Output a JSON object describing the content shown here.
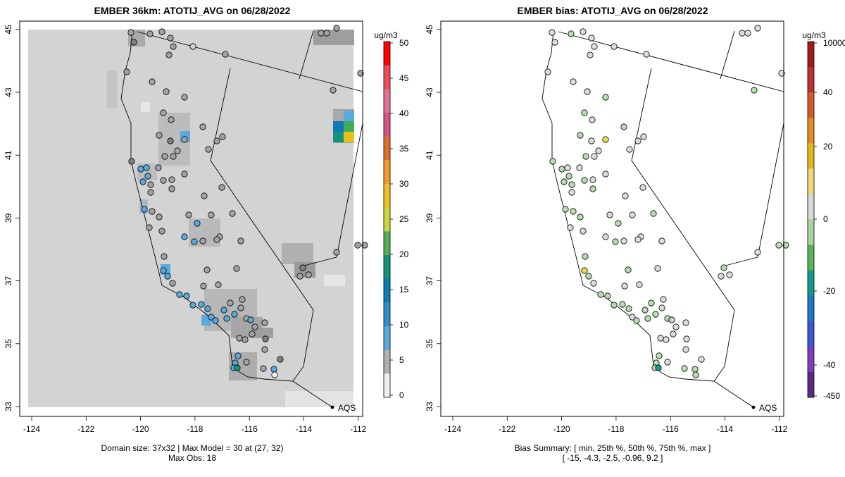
{
  "left": {
    "title": "EMBER 36km: ATOTIJ_AVG on 06/28/2022",
    "x_ticks": [
      "-124",
      "-122",
      "-120",
      "-118",
      "-116",
      "-114",
      "-112"
    ],
    "y_ticks": [
      "33",
      "35",
      "37",
      "39",
      "41",
      "43",
      "45"
    ],
    "aqs_label": "AQS",
    "colorbar": {
      "unit": "ug/m3",
      "ticks": [
        "50",
        "45",
        "40",
        "35",
        "30",
        "25",
        "20",
        "15",
        "10",
        "5",
        "0"
      ]
    },
    "footer": [
      "Domain size: 37x32 | Max Model = 30 at (27, 32)",
      "Max Obs: 18"
    ]
  },
  "right": {
    "title": "EMBER bias: ATOTIJ_AVG on 06/28/2022",
    "x_ticks": [
      "-124",
      "-122",
      "-120",
      "-118",
      "-116",
      "-114",
      "-112"
    ],
    "y_ticks": [
      "33",
      "35",
      "37",
      "39",
      "41",
      "43",
      "45"
    ],
    "aqs_label": "AQS",
    "colorbar": {
      "unit": "ug/m3",
      "ticks": [
        "10000",
        "40",
        "20",
        "0",
        "-20",
        "-40",
        "-450"
      ]
    },
    "footer": [
      "Bias Summary: [ min, 25th %, 50th %, 75th %, max ]",
      "[ -15,   -4.3,   -2.5,   -0.96,   9.2 ]"
    ]
  },
  "colors": {
    "model_background": "#d3d3d3",
    "conc_palette": [
      "#eeeeee",
      "#b0b0b0",
      "#5aa9dd",
      "#2f8fcc",
      "#0f7ab8",
      "#12937a",
      "#55b04f",
      "#c8d83a",
      "#eec12a",
      "#f19a2b",
      "#e26e2d",
      "#d8537e",
      "#e4708f",
      "#f04c5c",
      "#ff0000"
    ],
    "bias_palette": [
      "#5a2a82",
      "#7b3fc0",
      "#3b57d9",
      "#1f77c9",
      "#119a8c",
      "#56b35a",
      "#a8d4a0",
      "#d8d8d8",
      "#efd77a",
      "#e8b51c",
      "#e58a1f",
      "#d45a2b",
      "#c03030",
      "#a31a1a"
    ]
  }
}
